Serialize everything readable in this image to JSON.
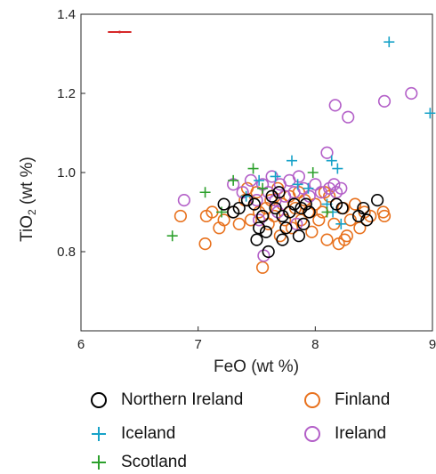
{
  "chart_data": {
    "type": "scatter",
    "xlabel": "FeO (wt %)",
    "ylabel_main": "TiO",
    "ylabel_sub": "2",
    "ylabel_tail": " (wt %)",
    "xlim": [
      6,
      9
    ],
    "ylim": [
      0.6,
      1.4
    ],
    "xticks": [
      "6",
      "7",
      "8",
      "9"
    ],
    "yticks": [
      "0.8",
      "1.0",
      "1.2",
      "1.4"
    ],
    "grid": false,
    "legend_placement": "below",
    "error_bar": {
      "x": 6.33,
      "y": 1.355,
      "x_err": 0.1,
      "color": "#d62728"
    },
    "series": [
      {
        "name": "Northern Ireland",
        "marker": "circle",
        "color": "#000000",
        "points": [
          [
            7.22,
            0.92
          ],
          [
            7.3,
            0.9
          ],
          [
            7.35,
            0.91
          ],
          [
            7.42,
            0.93
          ],
          [
            7.48,
            0.92
          ],
          [
            7.55,
            0.89
          ],
          [
            7.5,
            0.83
          ],
          [
            7.52,
            0.86
          ],
          [
            7.58,
            0.85
          ],
          [
            7.6,
            0.8
          ],
          [
            7.63,
            0.94
          ],
          [
            7.66,
            0.91
          ],
          [
            7.69,
            0.95
          ],
          [
            7.72,
            0.83
          ],
          [
            7.72,
            0.89
          ],
          [
            7.75,
            0.86
          ],
          [
            7.78,
            0.9
          ],
          [
            7.82,
            0.92
          ],
          [
            7.86,
            0.84
          ],
          [
            7.88,
            0.91
          ],
          [
            7.9,
            0.87
          ],
          [
            7.92,
            0.92
          ],
          [
            7.95,
            0.9
          ],
          [
            8.18,
            0.92
          ],
          [
            8.23,
            0.91
          ],
          [
            8.37,
            0.89
          ],
          [
            8.41,
            0.91
          ],
          [
            8.44,
            0.88
          ],
          [
            8.53,
            0.93
          ]
        ]
      },
      {
        "name": "Iceland",
        "marker": "plus",
        "color": "#17a2c8",
        "points": [
          [
            8.63,
            1.33
          ],
          [
            8.98,
            1.15
          ],
          [
            7.8,
            1.03
          ],
          [
            8.14,
            1.03
          ],
          [
            8.19,
            1.01
          ],
          [
            7.52,
            0.98
          ],
          [
            7.66,
            0.99
          ],
          [
            7.85,
            0.97
          ],
          [
            7.94,
            0.96
          ],
          [
            8.1,
            0.92
          ],
          [
            8.15,
            0.9
          ],
          [
            8.22,
            0.87
          ],
          [
            7.41,
            0.94
          ]
        ]
      },
      {
        "name": "Scotland",
        "marker": "plus",
        "color": "#2ca02c",
        "points": [
          [
            6.78,
            0.84
          ],
          [
            7.06,
            0.95
          ],
          [
            7.3,
            0.98
          ],
          [
            7.47,
            1.01
          ],
          [
            7.98,
            1.0
          ],
          [
            7.2,
            0.9
          ],
          [
            7.55,
            0.96
          ],
          [
            8.1,
            0.9
          ]
        ]
      },
      {
        "name": "Finland",
        "marker": "circle",
        "color": "#e8711d",
        "points": [
          [
            6.85,
            0.89
          ],
          [
            7.06,
            0.82
          ],
          [
            7.07,
            0.89
          ],
          [
            7.12,
            0.9
          ],
          [
            7.18,
            0.86
          ],
          [
            7.22,
            0.88
          ],
          [
            7.3,
            0.9
          ],
          [
            7.35,
            0.87
          ],
          [
            7.4,
            0.93
          ],
          [
            7.45,
            0.88
          ],
          [
            7.5,
            0.95
          ],
          [
            7.52,
            0.9
          ],
          [
            7.55,
            0.76
          ],
          [
            7.58,
            0.91
          ],
          [
            7.6,
            0.87
          ],
          [
            7.62,
            0.93
          ],
          [
            7.65,
            0.89
          ],
          [
            7.68,
            0.96
          ],
          [
            7.72,
            0.92
          ],
          [
            7.74,
            0.88
          ],
          [
            7.78,
            0.94
          ],
          [
            7.8,
            0.86
          ],
          [
            7.83,
            0.91
          ],
          [
            7.86,
            0.95
          ],
          [
            7.88,
            0.88
          ],
          [
            7.91,
            0.93
          ],
          [
            7.94,
            0.9
          ],
          [
            7.97,
            0.85
          ],
          [
            8.0,
            0.92
          ],
          [
            8.03,
            0.88
          ],
          [
            8.06,
            0.9
          ],
          [
            8.1,
            0.83
          ],
          [
            8.12,
            0.94
          ],
          [
            8.16,
            0.87
          ],
          [
            8.2,
            0.82
          ],
          [
            8.24,
            0.91
          ],
          [
            8.27,
            0.84
          ],
          [
            8.3,
            0.88
          ],
          [
            8.34,
            0.92
          ],
          [
            8.38,
            0.86
          ],
          [
            8.42,
            0.9
          ],
          [
            8.47,
            0.89
          ],
          [
            8.58,
            0.9
          ],
          [
            8.59,
            0.89
          ],
          [
            7.42,
            0.96
          ],
          [
            7.7,
            0.84
          ],
          [
            8.08,
            0.95
          ],
          [
            8.25,
            0.83
          ]
        ]
      },
      {
        "name": "Ireland",
        "marker": "circle",
        "color": "#b35fc8",
        "points": [
          [
            8.82,
            1.2
          ],
          [
            8.59,
            1.18
          ],
          [
            8.17,
            1.17
          ],
          [
            8.28,
            1.14
          ],
          [
            8.1,
            1.05
          ],
          [
            6.88,
            0.93
          ],
          [
            7.3,
            0.97
          ],
          [
            7.38,
            0.95
          ],
          [
            7.45,
            0.98
          ],
          [
            7.5,
            0.93
          ],
          [
            7.55,
            0.97
          ],
          [
            7.6,
            0.95
          ],
          [
            7.63,
            0.99
          ],
          [
            7.66,
            0.93
          ],
          [
            7.7,
            0.97
          ],
          [
            7.74,
            0.94
          ],
          [
            7.78,
            0.98
          ],
          [
            7.82,
            0.95
          ],
          [
            7.86,
            0.99
          ],
          [
            7.9,
            0.96
          ],
          [
            7.95,
            0.94
          ],
          [
            8.0,
            0.97
          ],
          [
            8.05,
            0.95
          ],
          [
            8.12,
            0.96
          ],
          [
            8.16,
            0.97
          ],
          [
            8.22,
            0.96
          ],
          [
            7.52,
            0.88
          ],
          [
            7.56,
            0.79
          ],
          [
            7.68,
            0.9
          ],
          [
            7.84,
            0.87
          ],
          [
            8.18,
            0.95
          ]
        ]
      }
    ]
  }
}
